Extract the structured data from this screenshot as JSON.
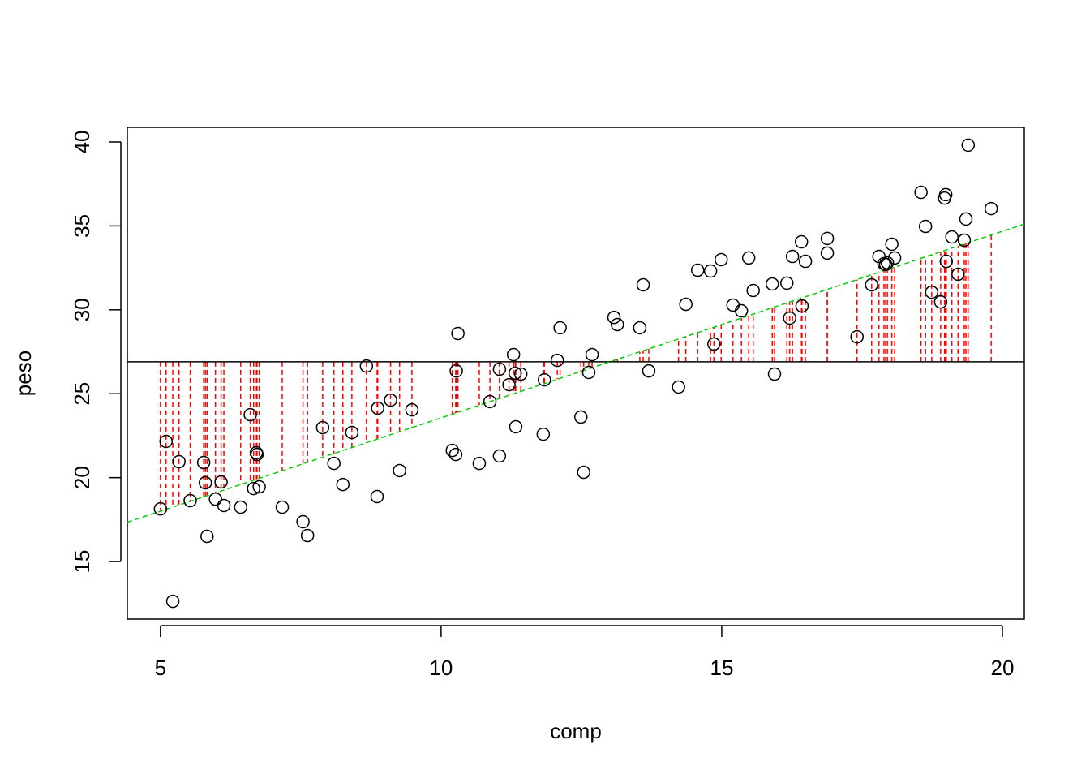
{
  "chart_data": {
    "type": "scatter",
    "xlabel": "comp",
    "ylabel": "peso",
    "xlim": [
      4.41,
      20.39
    ],
    "ylim": [
      11.57,
      40.87
    ],
    "xticks": [
      5,
      10,
      15,
      20
    ],
    "yticks": [
      15,
      20,
      25,
      30,
      35,
      40
    ],
    "x": [
      5.0,
      5.1,
      5.22,
      5.33,
      5.53,
      5.77,
      5.8,
      5.83,
      5.98,
      6.08,
      6.13,
      6.43,
      6.6,
      6.66,
      6.71,
      6.72,
      6.76,
      7.17,
      7.54,
      7.62,
      7.89,
      8.09,
      8.25,
      8.41,
      8.67,
      8.86,
      8.87,
      9.1,
      9.26,
      9.48,
      10.2,
      10.26,
      10.27,
      10.3,
      10.68,
      10.87,
      11.04,
      11.04,
      11.21,
      11.29,
      11.32,
      11.33,
      11.42,
      11.82,
      11.84,
      12.07,
      12.12,
      12.49,
      12.54,
      12.63,
      12.69,
      13.08,
      13.14,
      13.54,
      13.6,
      13.7,
      14.23,
      14.36,
      14.57,
      14.8,
      14.86,
      14.99,
      15.2,
      15.35,
      15.48,
      15.56,
      15.9,
      15.94,
      16.16,
      16.21,
      16.26,
      16.42,
      16.43,
      16.49,
      16.88,
      16.88,
      17.41,
      17.67,
      17.8,
      17.89,
      17.92,
      17.95,
      18.03,
      18.08,
      18.55,
      18.63,
      18.74,
      18.9,
      18.97,
      18.99,
      19.0,
      19.1,
      19.21,
      19.32,
      19.35,
      19.39,
      19.8
    ],
    "y": [
      18.14,
      22.16,
      12.63,
      20.95,
      18.63,
      20.9,
      19.69,
      16.5,
      18.72,
      19.74,
      18.34,
      18.24,
      23.75,
      19.35,
      21.48,
      21.38,
      19.45,
      18.24,
      17.37,
      16.55,
      22.98,
      20.85,
      19.59,
      22.69,
      26.65,
      18.87,
      24.14,
      24.62,
      20.42,
      24.04,
      21.62,
      21.38,
      26.36,
      28.59,
      20.85,
      24.53,
      26.46,
      21.29,
      25.54,
      27.33,
      26.22,
      23.03,
      26.17,
      22.59,
      25.83,
      26.99,
      28.93,
      23.61,
      20.32,
      26.27,
      27.33,
      29.55,
      29.12,
      28.93,
      31.49,
      26.36,
      25.4,
      30.33,
      32.36,
      32.31,
      27.96,
      32.99,
      30.28,
      29.94,
      33.09,
      31.15,
      31.54,
      26.17,
      31.59,
      29.51,
      33.18,
      34.05,
      30.23,
      32.89,
      34.25,
      33.38,
      28.39,
      31.49,
      33.18,
      32.75,
      32.7,
      32.8,
      33.91,
      33.09,
      37.0,
      34.97,
      31.05,
      30.47,
      36.66,
      36.86,
      32.89,
      34.34,
      32.12,
      34.15,
      35.41,
      39.81,
      36.03
    ],
    "color": "#000000",
    "hline": 26.9,
    "abline": {
      "intercept": 12.44,
      "slope": 1.112,
      "color": "#00cd00"
    },
    "segment_color": "#ff0000"
  }
}
